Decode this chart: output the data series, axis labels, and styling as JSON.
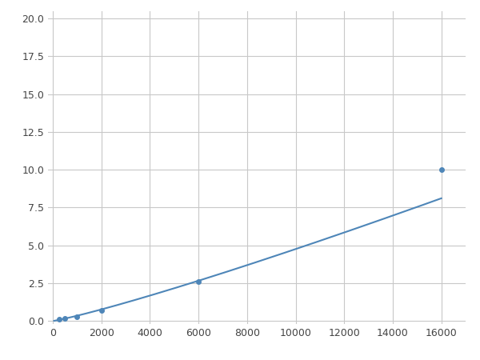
{
  "x": [
    250,
    500,
    750,
    1000,
    2000,
    6000,
    16000
  ],
  "y": [
    0.1,
    0.18,
    0.2,
    0.25,
    0.7,
    2.6,
    10.0
  ],
  "line_color": "#4e86b8",
  "marker_color": "#4e86b8",
  "marker_size": 4,
  "linewidth": 1.5,
  "xlim": [
    -200,
    17000
  ],
  "ylim": [
    -0.2,
    20.5
  ],
  "xticks": [
    0,
    2000,
    4000,
    6000,
    8000,
    10000,
    12000,
    14000,
    16000
  ],
  "yticks": [
    0.0,
    2.5,
    5.0,
    7.5,
    10.0,
    12.5,
    15.0,
    17.5,
    20.0
  ],
  "grid_color": "#c8c8c8",
  "background_color": "#ffffff",
  "figure_bg": "#ffffff"
}
